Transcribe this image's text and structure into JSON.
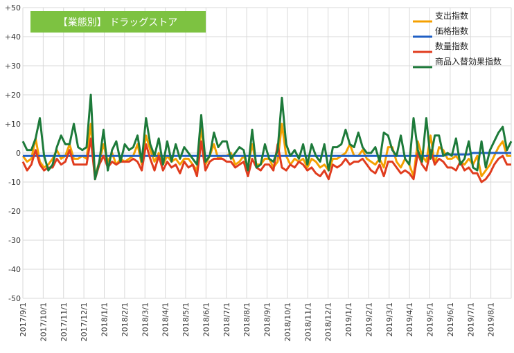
{
  "chart_data": {
    "type": "line",
    "title": "【業態別】 ドラッグストア",
    "title_bg_color": "#7dc241",
    "ylim": [
      -50,
      50
    ],
    "y_ticks": [
      50,
      40,
      30,
      20,
      10,
      0,
      -10,
      -20,
      -30,
      -40,
      -50
    ],
    "y_tick_labels": [
      "+50",
      "+40",
      "+30",
      "+20",
      "+10",
      "0",
      "-10",
      "-20",
      "-30",
      "-40",
      "-50"
    ],
    "x_tick_labels": [
      "2017/9/1",
      "2017/10/1",
      "2017/11/1",
      "2017/12/1",
      "2018/1/1",
      "2018/2/1",
      "2018/3/1",
      "2018/4/1",
      "2018/5/1",
      "2018/6/1",
      "2018/7/1",
      "2018/8/1",
      "2018/9/1",
      "2018/10/1",
      "2018/11/1",
      "2018/12/1",
      "2019/1/1",
      "2019/2/1",
      "2019/3/1",
      "2019/4/1",
      "2019/5/1",
      "2019/6/1",
      "2019/7/1",
      "2019/8/1"
    ],
    "grid": true,
    "legend_position": "top-right",
    "series": [
      {
        "name": "支出指数",
        "color": "#f5a000",
        "values": [
          -1,
          -3,
          -2,
          5,
          -3,
          -5,
          -4,
          -2,
          1,
          -2,
          -1,
          3,
          -2,
          -2,
          -1,
          -2,
          10,
          -8,
          -3,
          3,
          -3,
          0,
          -4,
          -2,
          -3,
          -2,
          -1,
          3,
          -4,
          6,
          1,
          -3,
          0,
          -4,
          -1,
          -3,
          -2,
          -4,
          -2,
          -2,
          -4,
          -6,
          9,
          -4,
          -1,
          3,
          -2,
          -1,
          -1,
          0,
          -4,
          -3,
          -1,
          -5,
          3,
          -4,
          -4,
          -2,
          -2,
          -5,
          -3,
          10,
          -1,
          -4,
          -2,
          -3,
          -2,
          -5,
          -2,
          -3,
          -5,
          -4,
          -6,
          -2,
          -2,
          -1,
          0,
          3,
          -1,
          -1,
          1,
          -2,
          -3,
          -4,
          -2,
          -5,
          2,
          2,
          -3,
          -5,
          -2,
          -4,
          -8,
          4,
          -1,
          -3,
          6,
          -4,
          2,
          1,
          -2,
          -2,
          -1,
          -3,
          -4,
          -2,
          -4,
          -1,
          -8,
          -6,
          -4,
          -1,
          2,
          4,
          -1,
          -1
        ]
      },
      {
        "name": "価格指数",
        "color": "#1f5fc4",
        "values": [
          -1,
          -1,
          -1,
          -1,
          -1,
          -1,
          -1,
          -1,
          -1,
          -1,
          -1,
          -1,
          -1,
          -1,
          -1,
          -1,
          -1,
          -1,
          -1,
          -1,
          -1,
          -1,
          -1,
          -1,
          -1,
          -1,
          -1,
          -1,
          -1,
          -1,
          -1,
          -1,
          -1,
          -1,
          -1,
          -1,
          -1,
          -1,
          -1,
          -1,
          -1,
          -1,
          -1,
          -1,
          -1,
          -1,
          -1,
          -1,
          -1,
          -1,
          -1,
          -1,
          -1,
          -1,
          -1,
          -1,
          -1,
          -1,
          -1,
          -1,
          -1,
          -1,
          -1,
          -1,
          -1,
          -1,
          -1,
          -1,
          -1,
          -1,
          -1,
          -1,
          -1,
          -1,
          -1,
          -1,
          -1,
          -1,
          -1,
          -1,
          -1,
          -1,
          -1,
          -1,
          -1,
          -1,
          -1,
          -1,
          -1,
          -1,
          -1,
          -1,
          -1,
          -1,
          -1,
          -1,
          -1,
          -1,
          -1,
          -1,
          -0.5,
          -0.5,
          -0.5,
          -0.5,
          -0.5,
          -0.5,
          0,
          0,
          0,
          0,
          0,
          0,
          0,
          0,
          0,
          0
        ]
      },
      {
        "name": "数量指数",
        "color": "#e03c1e",
        "values": [
          -3,
          -6,
          -4,
          1,
          -4,
          -6,
          -5,
          -5,
          -2,
          -4,
          -3,
          1,
          -4,
          -4,
          -4,
          -4,
          5,
          -9,
          -4,
          -1,
          -5,
          -3,
          -4,
          -3,
          -3,
          -3,
          -2,
          -3,
          -6,
          3,
          -2,
          -6,
          -1,
          -6,
          -3,
          -5,
          -4,
          -7,
          -3,
          -5,
          -4,
          -8,
          4,
          -6,
          -3,
          -2,
          -2,
          -2,
          -3,
          -3,
          -5,
          -4,
          -3,
          -8,
          -2,
          -5,
          -6,
          -4,
          -4,
          -6,
          3,
          -5,
          -6,
          -4,
          -5,
          -3,
          -4,
          -6,
          -5,
          -7,
          -8,
          -6,
          -9,
          -4,
          -5,
          -4,
          -2,
          -4,
          -3,
          -3,
          -2,
          -4,
          -6,
          -7,
          -4,
          -8,
          -3,
          -3,
          -5,
          -7,
          -6,
          -7,
          -9,
          0,
          -4,
          -6,
          1,
          -4,
          -2,
          -3,
          -5,
          -5,
          -6,
          -3,
          -6,
          -5,
          -7,
          -7,
          -10,
          -9,
          -7,
          -4,
          -2,
          -1,
          -4,
          -4
        ]
      },
      {
        "name": "商品入替効果指数",
        "color": "#1d7a3a",
        "values": [
          4,
          1,
          1,
          5,
          12,
          -1,
          -6,
          -4,
          2,
          6,
          3,
          3,
          10,
          2,
          1,
          2,
          20,
          -9,
          -3,
          8,
          -6,
          1,
          4,
          -3,
          3,
          1,
          2,
          6,
          -3,
          12,
          3,
          -1,
          5,
          -4,
          4,
          -3,
          3,
          -2,
          2,
          0,
          -2,
          -4,
          13,
          -3,
          -1,
          7,
          2,
          4,
          4,
          -2,
          0,
          2,
          1,
          -6,
          8,
          -5,
          -4,
          3,
          -2,
          -3,
          1,
          19,
          3,
          -1,
          1,
          -2,
          3,
          -4,
          3,
          -1,
          -3,
          3,
          -6,
          2,
          2,
          3,
          8,
          3,
          2,
          7,
          2,
          0,
          0,
          2,
          -3,
          7,
          6,
          1,
          -1,
          6,
          -2,
          -4,
          12,
          1,
          -3,
          12,
          -2,
          6,
          6,
          -1,
          0,
          -1,
          5,
          -4,
          -2,
          4,
          -5,
          -6,
          4,
          -5,
          1,
          4,
          7,
          9,
          1,
          4
        ]
      }
    ]
  }
}
